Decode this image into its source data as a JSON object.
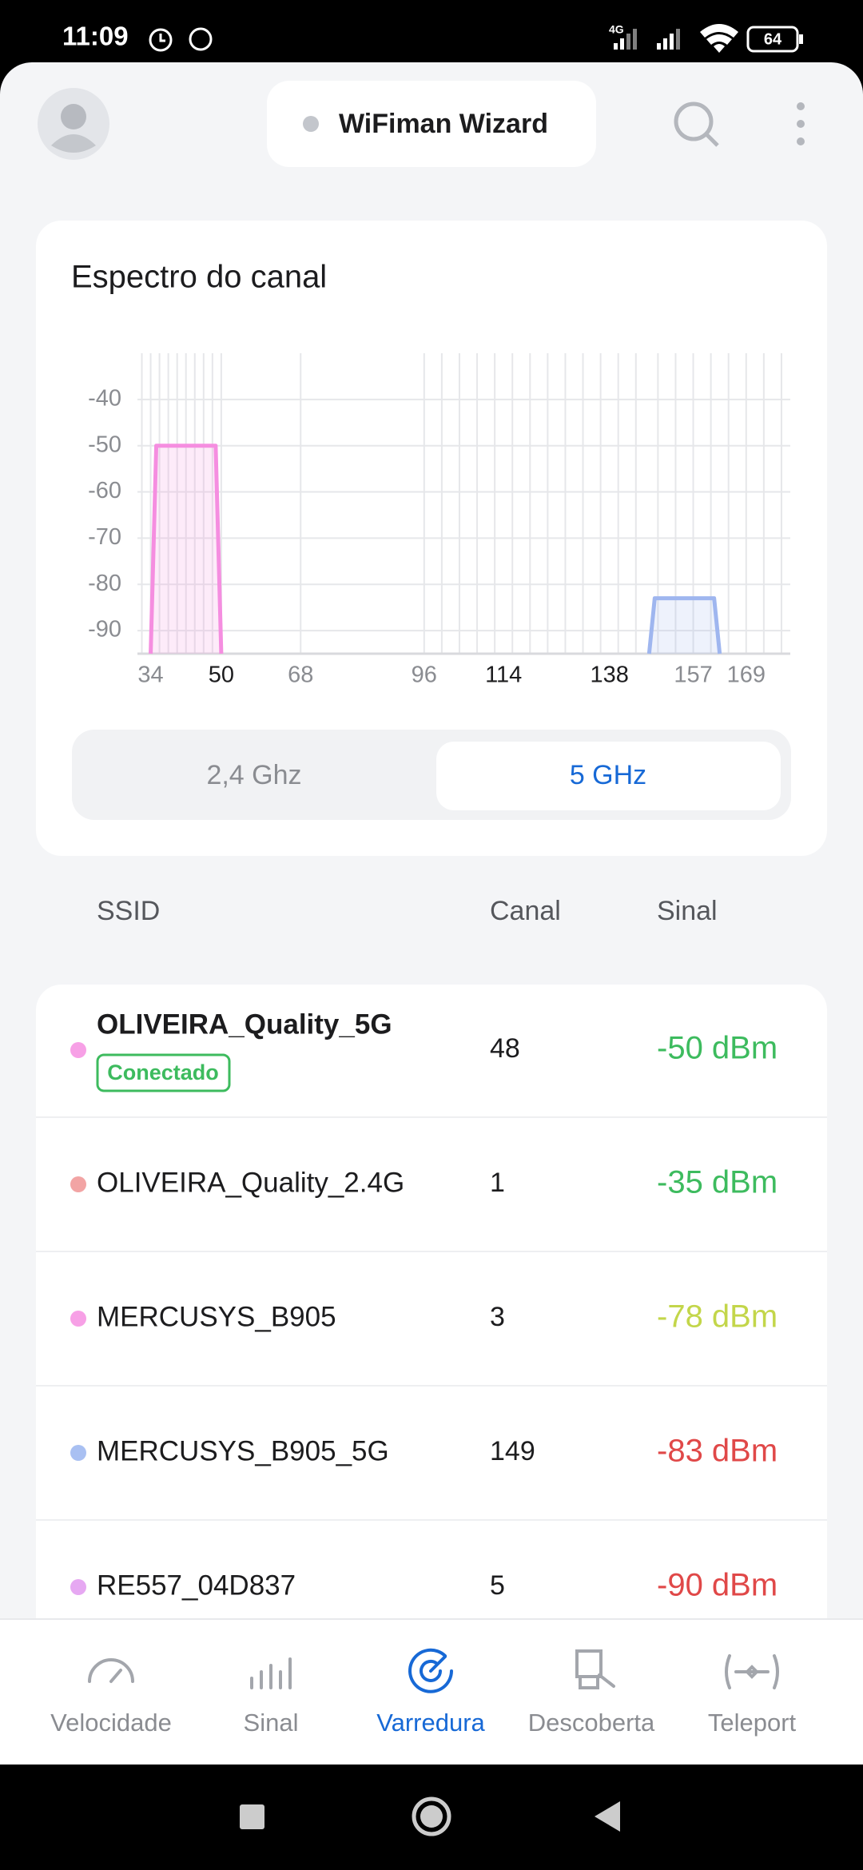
{
  "status_bar": {
    "time": "11:09",
    "network": "4G",
    "battery": "64"
  },
  "header": {
    "title": "WiFiman Wizard"
  },
  "spectrum": {
    "title": "Espectro do canal",
    "type": "area",
    "xlim": [
      31,
      179
    ],
    "ylim": [
      -95,
      -30
    ],
    "yticks": [
      -40,
      -50,
      -60,
      -70,
      -80,
      -90
    ],
    "xticks": [
      34,
      50,
      68,
      96,
      114,
      138,
      157,
      169
    ],
    "emphasized_xticks": [
      50,
      114,
      138
    ],
    "grid_channels": [
      32,
      34,
      36,
      38,
      40,
      42,
      44,
      46,
      48,
      50,
      68,
      96,
      100,
      104,
      108,
      112,
      116,
      120,
      124,
      128,
      132,
      136,
      140,
      144,
      149,
      153,
      157,
      161,
      165,
      169,
      173,
      177
    ],
    "bands": [
      {
        "from": 34,
        "to": 50,
        "value": -50,
        "color": "#f58ee0"
      },
      {
        "from": 147,
        "to": 163,
        "value": -83,
        "color": "#9fb6ef"
      }
    ]
  },
  "band_toggle": {
    "options": [
      "2,4 Ghz",
      "5 GHz"
    ],
    "selected": 1
  },
  "table": {
    "columns": [
      "SSID",
      "Canal",
      "Sinal"
    ],
    "rows": [
      {
        "ssid": "OLIVEIRA_Quality_5G",
        "badge": "Conectado",
        "channel": "48",
        "signal": "-50 dBm",
        "dot_color": "#f7a0e6",
        "signal_color": "#3dbb5e"
      },
      {
        "ssid": "OLIVEIRA_Quality_2.4G",
        "channel": "1",
        "signal": "-35 dBm",
        "dot_color": "#f2a4a4",
        "signal_color": "#3dbb5e"
      },
      {
        "ssid": "MERCUSYS_B905",
        "channel": "3",
        "signal": "-78 dBm",
        "dot_color": "#f7a0e6",
        "signal_color": "#c3d64a"
      },
      {
        "ssid": "MERCUSYS_B905_5G",
        "channel": "149",
        "signal": "-83 dBm",
        "dot_color": "#a9c0f2",
        "signal_color": "#e04848"
      },
      {
        "ssid": "RE557_04D837",
        "channel": "5",
        "signal": "-90 dBm",
        "dot_color": "#e6a8f2",
        "signal_color": "#e04848"
      }
    ]
  },
  "nav": {
    "items": [
      "Velocidade",
      "Sinal",
      "Varredura",
      "Descoberta",
      "Teleport"
    ],
    "selected": 2
  }
}
